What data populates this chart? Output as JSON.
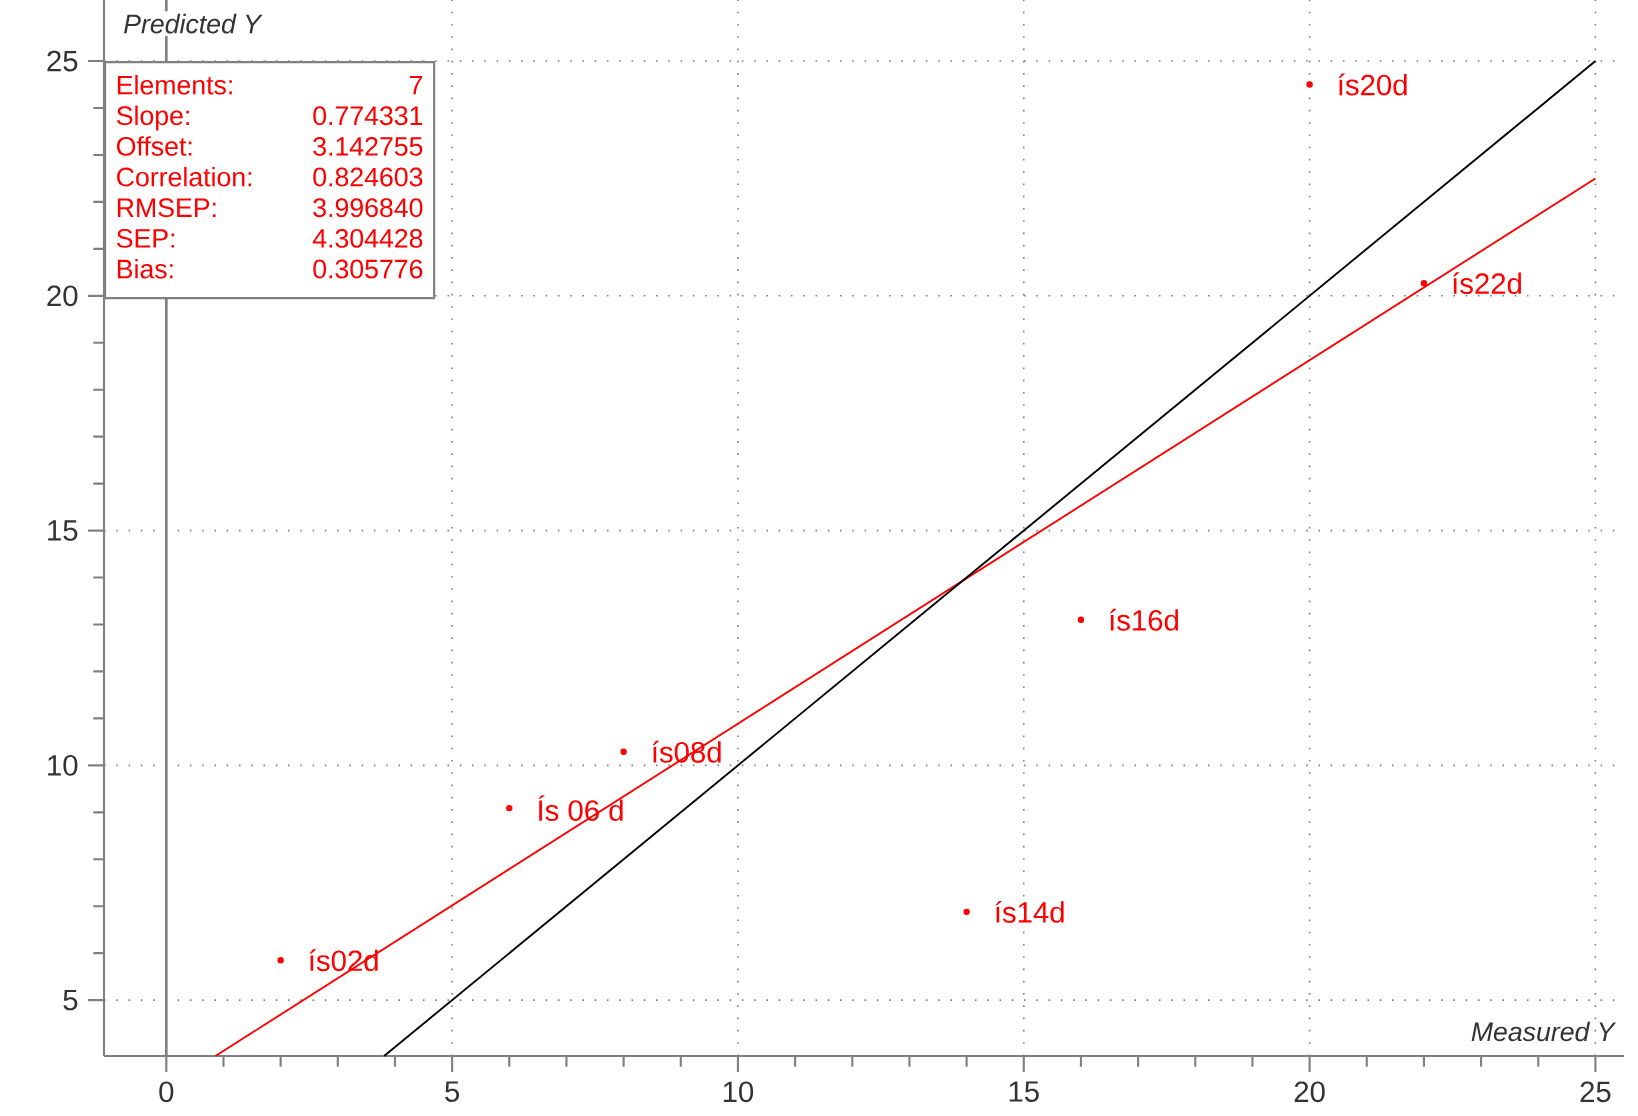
{
  "chart_data": {
    "type": "scatter",
    "xlabel": "Measured Y",
    "ylabel": "Predicted Y",
    "xlim": [
      -1.09,
      25.5
    ],
    "ylim": [
      3.81,
      26.3
    ],
    "xticks": [
      0,
      5,
      10,
      15,
      20,
      25
    ],
    "yticks": [
      5,
      10,
      15,
      20,
      25
    ],
    "grid": true,
    "marker": "circle",
    "series": [
      {
        "color": "#ff0000",
        "x": [
          2,
          6,
          8,
          14,
          16,
          20,
          22
        ],
        "values": [
          5.85,
          9.09,
          10.29,
          6.88,
          13.1,
          24.5,
          20.27
        ]
      },
      {
        "type": "line",
        "color": "#ff0000",
        "marker": "none",
        "x": [
          0.86,
          25
        ],
        "values": [
          3.81,
          22.5
        ]
      },
      {
        "type": "line",
        "color": "#000000",
        "marker": "none",
        "x": [
          3.81,
          25
        ],
        "values": [
          3.81,
          25
        ]
      }
    ],
    "ref_lines": [
      {
        "axis": "x",
        "value": 0,
        "color": "#808080"
      }
    ],
    "annotations": [
      "Elements:",
      "7",
      "Slope:",
      "0.774331",
      "Offset:",
      "3.142755",
      "Correlation:",
      "0.824603",
      "RMSEP:",
      "3.996840",
      "SEP:",
      "4.304428",
      "Bias:",
      "0.305776",
      {
        "text": "ís02d",
        "x": 2,
        "y": 5.85
      },
      {
        "text": "Ís 06 d",
        "x": 6,
        "y": 9.09
      },
      {
        "text": "ís08d",
        "x": 8,
        "y": 10.29
      },
      {
        "text": "ís14d",
        "x": 14,
        "y": 6.88
      },
      {
        "text": "ís16d",
        "x": 16,
        "y": 13.1
      },
      {
        "text": "ís20d",
        "x": 20,
        "y": 24.5
      },
      {
        "text": "ís22d",
        "x": 22,
        "y": 20.27
      }
    ]
  }
}
